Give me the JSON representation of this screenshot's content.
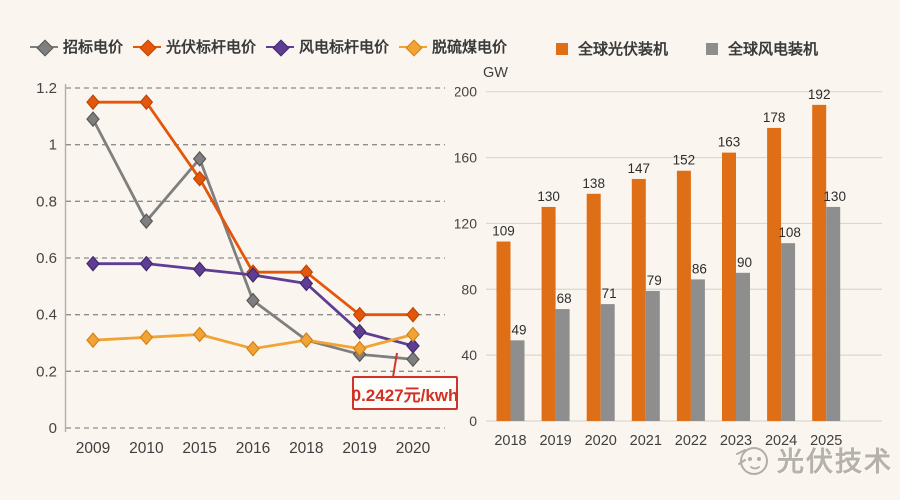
{
  "chart_data": [
    {
      "type": "line",
      "title": "",
      "categories": [
        "2009",
        "2010",
        "2015",
        "2016",
        "2018",
        "2019",
        "2020"
      ],
      "series": [
        {
          "name": "招标电价",
          "color": "#7f7f7f",
          "edge": "#575757",
          "values": [
            1.09,
            0.73,
            0.95,
            0.45,
            0.31,
            0.26,
            0.2427
          ]
        },
        {
          "name": "光伏标杆电价",
          "color": "#e4570b",
          "edge": "#bd4506",
          "values": [
            1.15,
            1.15,
            0.88,
            0.55,
            0.55,
            0.4,
            0.4
          ]
        },
        {
          "name": "风电标杆电价",
          "color": "#5e3d94",
          "edge": "#41296d",
          "values": [
            0.58,
            0.58,
            0.56,
            0.54,
            0.51,
            0.34,
            0.29
          ]
        },
        {
          "name": "脱硫煤电价",
          "color": "#f1a335",
          "edge": "#d1821b",
          "values": [
            0.31,
            0.32,
            0.33,
            0.28,
            0.31,
            0.28,
            0.33
          ]
        }
      ],
      "xlabel": "",
      "ylabel": "",
      "ylim": [
        0,
        1.2
      ],
      "yticks": [
        1.2,
        1,
        0.8,
        0.6,
        0.4,
        0.2,
        0
      ],
      "grid": "dashed horizontal",
      "legend_position": "top",
      "annotation": {
        "text": "0.2427元/kwh",
        "color": "#d13025",
        "points_to": {
          "series": "招标电价",
          "category": "2020"
        }
      }
    },
    {
      "type": "bar",
      "title": "",
      "categories": [
        "2018",
        "2019",
        "2020",
        "2021",
        "2022",
        "2023",
        "2024",
        "2025"
      ],
      "series": [
        {
          "name": "全球光伏装机",
          "color": "#df6f17",
          "values": [
            109,
            130,
            138,
            147,
            152,
            163,
            178,
            192
          ]
        },
        {
          "name": "全球风电装机",
          "color": "#8e8e8e",
          "values": [
            49,
            68,
            71,
            79,
            86,
            90,
            108,
            130
          ]
        }
      ],
      "xlabel": "",
      "ylabel": "GW",
      "ylim": [
        0,
        200
      ],
      "yticks": [
        200,
        160,
        120,
        80,
        40,
        0
      ],
      "grid": "solid horizontal",
      "legend_position": "top"
    }
  ],
  "colors": {
    "background": "#faf6ef",
    "gridline_dashed": "#8d8d8d",
    "gridline_solid": "#ddd6cb",
    "axis_text": "#444444",
    "label_text": "#2d2d2d",
    "annotation_red": "#cf3329"
  },
  "watermark": {
    "text": "光伏技术"
  }
}
